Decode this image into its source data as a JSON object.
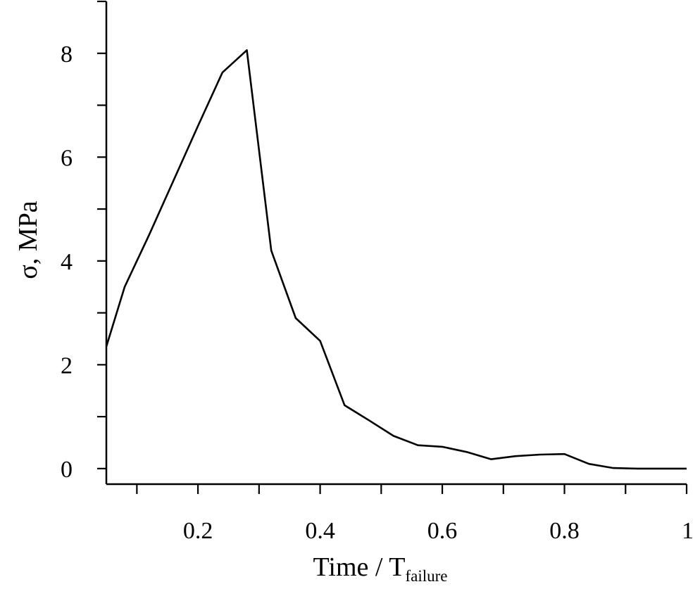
{
  "chart_data": {
    "type": "line",
    "xlabel": "Time / T",
    "xlabel_subscript": "failure",
    "ylabel": "σ, MPa",
    "xlim": [
      0.05,
      1.0
    ],
    "ylim": [
      -0.3,
      9.0
    ],
    "x_major_ticks": [
      0.2,
      0.4,
      0.6,
      0.8,
      1
    ],
    "x_tick_labels": [
      "0.2",
      "0.4",
      "0.6",
      "0.8",
      "1"
    ],
    "x_minor_ticks": [
      0.1,
      0.3,
      0.5,
      0.7,
      0.9
    ],
    "y_major_ticks": [
      0,
      2,
      4,
      6,
      8
    ],
    "y_tick_labels": [
      "0",
      "2",
      "4",
      "6",
      "8"
    ],
    "y_minor_ticks": [
      1,
      3,
      5,
      7,
      9
    ],
    "grid": false,
    "series": [
      {
        "color": "#000000",
        "x": [
          0.05,
          0.08,
          0.12,
          0.16,
          0.2,
          0.24,
          0.28,
          0.32,
          0.36,
          0.4,
          0.44,
          0.48,
          0.52,
          0.56,
          0.6,
          0.64,
          0.68,
          0.72,
          0.76,
          0.8,
          0.84,
          0.88,
          0.92,
          0.96,
          1.0
        ],
        "y": [
          2.35,
          3.5,
          4.5,
          5.55,
          6.6,
          7.63,
          8.06,
          4.2,
          2.9,
          2.46,
          1.22,
          0.93,
          0.63,
          0.45,
          0.42,
          0.32,
          0.18,
          0.24,
          0.27,
          0.28,
          0.09,
          0.01,
          0.0,
          0.0,
          0.0
        ]
      }
    ]
  }
}
